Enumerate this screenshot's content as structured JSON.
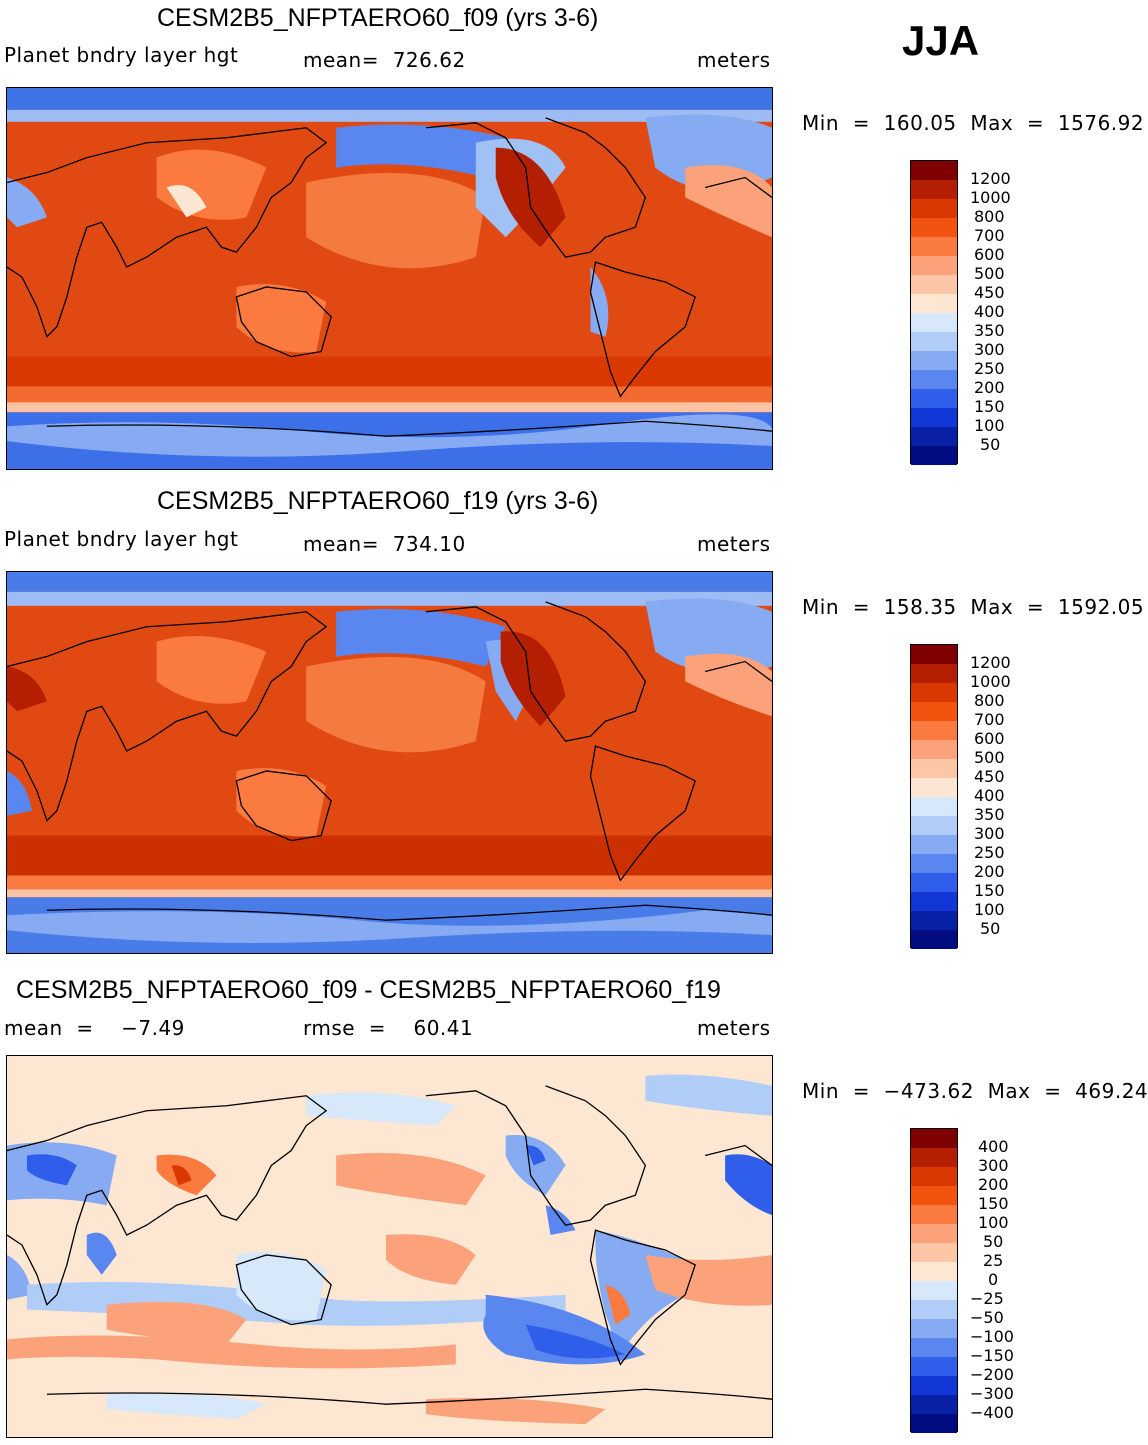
{
  "season": "JJA",
  "panels": [
    {
      "title": "CESM2B5_NFPTAERO60_f09 (yrs 3-6)",
      "variable": "Planet bndry layer hgt",
      "stat": "mean=  726.62",
      "units": "meters",
      "minmax": "Min  =  160.05  Max  =  1576.92",
      "palette": "abs"
    },
    {
      "title": "CESM2B5_NFPTAERO60_f19 (yrs 3-6)",
      "variable": "Planet bndry layer hgt",
      "stat": "mean=  734.10",
      "units": "meters",
      "minmax": "Min  =  158.35  Max  =  1592.05",
      "palette": "abs"
    },
    {
      "title": "CESM2B5_NFPTAERO60_f09 - CESM2B5_NFPTAERO60_f19",
      "variable": "mean  =    −7.49",
      "stat": "rmse  =    60.41",
      "units": "meters",
      "minmax": "Min  =  −473.62  Max  =  469.24",
      "palette": "diff"
    }
  ],
  "colorbars": {
    "abs": {
      "labels": [
        "1200",
        "1000",
        "800",
        "700",
        "600",
        "500",
        "450",
        "400",
        "350",
        "300",
        "250",
        "200",
        "150",
        "100",
        "50"
      ],
      "colors": [
        "#7f0000",
        "#b31f00",
        "#d93800",
        "#f25410",
        "#fa7a40",
        "#fca27a",
        "#fdc6a6",
        "#fde6d2",
        "#d6e8fa",
        "#b0cdf7",
        "#86abf2",
        "#5a87ef",
        "#2f5fea",
        "#1237d6",
        "#0720a6",
        "#000c80"
      ]
    },
    "diff": {
      "labels": [
        "400",
        "300",
        "200",
        "150",
        "100",
        "50",
        "25",
        "0",
        "−25",
        "−50",
        "−100",
        "−150",
        "−200",
        "−300",
        "−400"
      ],
      "colors": [
        "#7f0000",
        "#b31f00",
        "#d93800",
        "#f25410",
        "#fa7a40",
        "#fca27a",
        "#fdc6a6",
        "#fde6d2",
        "#d6e8fa",
        "#b0cdf7",
        "#86abf2",
        "#5a87ef",
        "#2f5fea",
        "#1237d6",
        "#0720a6",
        "#000c80"
      ]
    }
  }
}
